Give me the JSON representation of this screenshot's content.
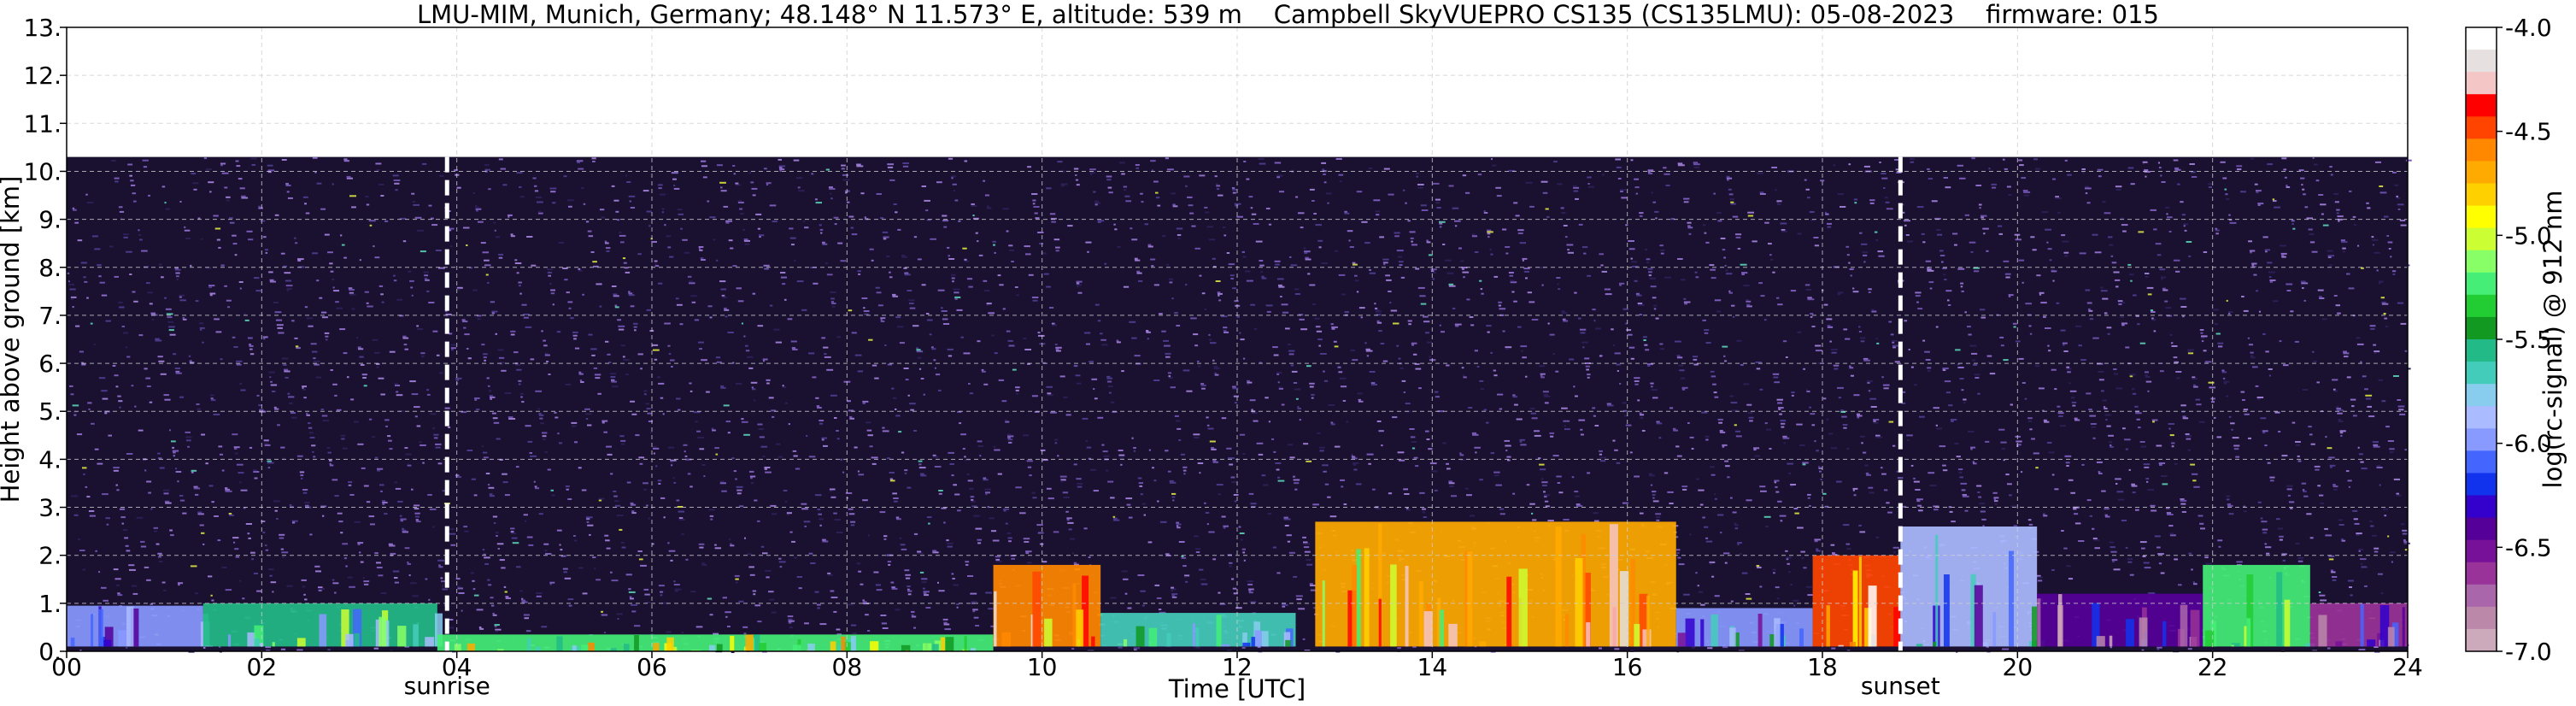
{
  "title": "LMU-MIM, Munich, Germany; 48.148° N 11.573° E, altitude: 539 m    Campbell SkyVUEPRO CS135 (CS135LMU): 05-08-2023    firmware: 015",
  "chart_data": {
    "type": "heatmap",
    "xlabel": "Time [UTC]",
    "ylabel": "Height above ground [km]",
    "xlim": [
      0,
      24
    ],
    "ylim": [
      0,
      13
    ],
    "x_ticks": [
      "00",
      "02",
      "04",
      "06",
      "08",
      "10",
      "12",
      "14",
      "16",
      "18",
      "20",
      "22",
      "24"
    ],
    "y_ticks": [
      "0.",
      "1.",
      "2.",
      "3.",
      "4.",
      "5.",
      "6.",
      "7.",
      "8.",
      "9.",
      "10.",
      "11.",
      "12.",
      "13."
    ],
    "grid": true,
    "data_top_km": 10.3,
    "markers": [
      {
        "label": "sunrise",
        "time": 3.9
      },
      {
        "label": "sunset",
        "time": 18.8
      }
    ],
    "colorbar": {
      "label": "log(rc-signal) @ 912 nm",
      "range": [
        -7.0,
        -4.0
      ],
      "ticks": [
        "-4.0",
        "-4.5",
        "-5.0",
        "-5.5",
        "-6.0",
        "-6.5",
        "-7.0"
      ],
      "colors": [
        "#ffffff",
        "#e6e0e0",
        "#f5c6c6",
        "#ff0000",
        "#ff4400",
        "#ff8800",
        "#ffaa00",
        "#ffd000",
        "#ffff00",
        "#ccff33",
        "#88ff66",
        "#44ee77",
        "#22cc33",
        "#119922",
        "#22bb88",
        "#44ccbb",
        "#88ccee",
        "#aabbff",
        "#8899ff",
        "#4466ff",
        "#1133ee",
        "#3300cc",
        "#550099",
        "#771199",
        "#993399",
        "#aa66aa",
        "#bb88aa",
        "#ccaabb"
      ]
    },
    "layers": [
      {
        "name": "boundary-layer",
        "segments": [
          {
            "t0": 0.0,
            "t1": 1.4,
            "h0": 0.1,
            "h1": 0.95,
            "level": -6.0
          },
          {
            "t0": 1.4,
            "t1": 3.8,
            "h0": 0.1,
            "h1": 1.0,
            "level": -5.5
          },
          {
            "t0": 3.8,
            "t1": 9.5,
            "h0": 0.0,
            "h1": 0.35,
            "level": -5.2
          },
          {
            "t0": 9.5,
            "t1": 10.6,
            "h0": 0.1,
            "h1": 1.8,
            "level": -4.6
          },
          {
            "t0": 10.6,
            "t1": 12.6,
            "h0": 0.1,
            "h1": 0.8,
            "level": -5.7
          },
          {
            "t0": 12.8,
            "t1": 16.5,
            "h0": 0.1,
            "h1": 2.7,
            "level": -4.7
          },
          {
            "t0": 16.5,
            "t1": 17.9,
            "h0": 0.1,
            "h1": 0.9,
            "level": -6.0
          },
          {
            "t0": 17.9,
            "t1": 18.8,
            "h0": 0.1,
            "h1": 2.0,
            "level": -4.5
          },
          {
            "t0": 18.8,
            "t1": 20.2,
            "h0": 0.1,
            "h1": 2.6,
            "level": -5.9
          },
          {
            "t0": 20.2,
            "t1": 21.9,
            "h0": 0.1,
            "h1": 1.2,
            "level": -6.4
          },
          {
            "t0": 21.9,
            "t1": 23.0,
            "h0": 0.1,
            "h1": 1.8,
            "level": -5.2
          },
          {
            "t0": 23.0,
            "t1": 24.0,
            "h0": 0.1,
            "h1": 1.0,
            "level": -6.6
          }
        ]
      }
    ]
  }
}
